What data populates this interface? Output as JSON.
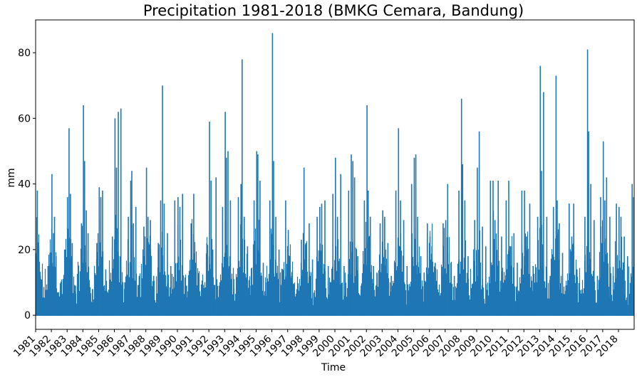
{
  "chart_data": {
    "type": "line",
    "title": "Precipitation 1981-2018 (BMKG Cemara, Bandung)",
    "xlabel": "Time",
    "ylabel": "mm",
    "xlim": [
      "1981-01-01",
      "2018-12-31"
    ],
    "ylim": [
      -4.3,
      90
    ],
    "y_ticks": [
      0,
      20,
      40,
      60,
      80
    ],
    "x_tick_labels": [
      "1981",
      "1982",
      "1983",
      "1984",
      "1985",
      "1986",
      "1987",
      "1988",
      "1989",
      "1990",
      "1991",
      "1992",
      "1993",
      "1994",
      "1995",
      "1996",
      "1997",
      "1998",
      "1999",
      "2000",
      "2001",
      "2002",
      "2003",
      "2004",
      "2005",
      "2006",
      "2007",
      "2008",
      "2009",
      "2010",
      "2011",
      "2012",
      "2013",
      "2014",
      "2015",
      "2016",
      "2017",
      "2018"
    ],
    "grid": false,
    "legend": null,
    "series_color": "#1f77b4",
    "series": [
      {
        "values_note_free": true,
        "x": [
          "1981-01-01",
          "1981-02-10",
          "1981-03-15",
          "1981-04-20",
          "1981-06-01",
          "1981-08-01",
          "1981-10-15",
          "1981-12-01",
          "1982-01-15",
          "1982-02-20",
          "1982-03-15",
          "1982-04-20",
          "1982-06-15",
          "1982-09-01",
          "1982-11-15",
          "1983-01-10",
          "1983-02-15",
          "1983-03-20",
          "1983-05-01",
          "1983-07-15",
          "1983-10-01",
          "1983-12-01",
          "1984-01-15",
          "1984-02-10",
          "1984-03-20",
          "1984-05-01",
          "1984-08-15",
          "1984-11-20",
          "1985-01-15",
          "1985-02-20",
          "1985-04-01",
          "1985-06-15",
          "1985-09-01",
          "1985-11-15",
          "1986-01-15",
          "1986-02-20",
          "1986-04-01",
          "1986-06-01",
          "1986-09-01",
          "1986-11-20",
          "1987-01-15",
          "1987-02-10",
          "1987-03-20",
          "1987-05-15",
          "1987-08-01",
          "1987-11-15",
          "1988-01-15",
          "1988-02-20",
          "1988-04-15",
          "1988-07-01",
          "1988-10-15",
          "1988-12-10",
          "1989-01-20",
          "1989-03-01",
          "1989-05-15",
          "1989-08-01",
          "1989-11-01",
          "1990-01-15",
          "1990-03-01",
          "1990-05-01",
          "1990-08-01",
          "1990-11-15",
          "1991-01-15",
          "1991-03-01",
          "1991-05-15",
          "1991-08-01",
          "1991-11-15",
          "1992-01-15",
          "1992-02-20",
          "1992-04-01",
          "1992-06-15",
          "1992-09-01",
          "1992-11-15",
          "1993-01-15",
          "1993-02-10",
          "1993-03-20",
          "1993-05-15",
          "1993-08-01",
          "1993-11-15",
          "1994-01-15",
          "1994-02-10",
          "1994-04-01",
          "1994-06-15",
          "1994-09-01",
          "1994-11-15",
          "1995-01-15",
          "1995-02-10",
          "1995-04-01",
          "1995-06-15",
          "1995-09-01",
          "1995-11-15",
          "1996-01-15",
          "1996-02-10",
          "1996-04-01",
          "1996-06-15",
          "1996-09-01",
          "1996-11-15",
          "1997-01-15",
          "1997-02-20",
          "1997-04-01",
          "1997-06-15",
          "1997-09-01",
          "1997-11-15",
          "1998-01-15",
          "1998-03-01",
          "1998-05-15",
          "1998-08-01",
          "1998-11-15",
          "1999-01-15",
          "1999-03-01",
          "1999-05-15",
          "1999-08-01",
          "1999-11-15",
          "2000-01-15",
          "2000-03-01",
          "2000-05-15",
          "2000-08-01",
          "2000-11-15",
          "2001-01-15",
          "2001-02-20",
          "2001-04-01",
          "2001-06-15",
          "2001-09-01",
          "2001-11-15",
          "2002-01-15",
          "2002-02-10",
          "2002-04-01",
          "2002-06-15",
          "2002-09-01",
          "2002-11-15",
          "2003-01-15",
          "2003-03-01",
          "2003-05-15",
          "2003-08-01",
          "2003-11-15",
          "2004-01-15",
          "2004-03-01",
          "2004-05-15",
          "2004-08-01",
          "2004-11-15",
          "2005-01-15",
          "2005-02-20",
          "2005-04-01",
          "2005-06-15",
          "2005-09-01",
          "2005-11-15",
          "2006-01-15",
          "2006-03-01",
          "2006-05-15",
          "2006-08-01",
          "2006-11-15",
          "2007-01-15",
          "2007-03-01",
          "2007-05-15",
          "2007-08-01",
          "2007-11-15",
          "2008-01-15",
          "2008-02-10",
          "2008-04-01",
          "2008-06-15",
          "2008-09-01",
          "2008-11-15",
          "2009-01-15",
          "2009-03-01",
          "2009-05-15",
          "2009-08-01",
          "2009-11-15",
          "2010-01-15",
          "2010-03-01",
          "2010-05-15",
          "2010-08-01",
          "2010-11-15",
          "2011-01-15",
          "2011-03-01",
          "2011-05-15",
          "2011-08-01",
          "2011-11-15",
          "2012-01-15",
          "2012-03-01",
          "2012-05-15",
          "2012-08-01",
          "2012-11-15",
          "2013-01-15",
          "2013-02-10",
          "2013-04-01",
          "2013-06-15",
          "2013-09-01",
          "2013-11-15",
          "2014-01-15",
          "2014-02-10",
          "2014-04-01",
          "2014-06-15",
          "2014-09-01",
          "2014-11-15",
          "2015-01-15",
          "2015-03-01",
          "2015-05-15",
          "2015-08-01",
          "2015-11-15",
          "2016-01-15",
          "2016-02-10",
          "2016-04-01",
          "2016-06-15",
          "2016-09-01",
          "2016-11-15",
          "2017-01-15",
          "2017-02-20",
          "2017-04-01",
          "2017-06-15",
          "2017-09-01",
          "2017-11-15",
          "2018-01-15",
          "2018-03-01",
          "2018-05-15",
          "2018-08-01",
          "2018-11-15",
          "2018-12-20"
        ],
        "y": [
          19,
          38,
          21,
          12,
          8,
          3,
          15,
          19,
          43,
          25,
          30,
          18,
          7,
          5,
          20,
          36,
          57,
          37,
          22,
          9,
          4,
          28,
          64,
          47,
          32,
          25,
          8,
          22,
          39,
          36,
          38,
          14,
          6,
          24,
          60,
          45,
          62,
          63,
          10,
          30,
          41,
          44,
          28,
          33,
          12,
          27,
          45,
          30,
          29,
          12,
          22,
          35,
          70,
          34,
          25,
          15,
          35,
          36,
          33,
          37,
          9,
          28,
          37,
          16,
          12,
          6,
          22,
          59,
          41,
          20,
          42,
          9,
          33,
          62,
          48,
          50,
          35,
          11,
          36,
          40,
          78,
          30,
          21,
          9,
          35,
          50,
          49,
          41,
          16,
          10,
          35,
          86,
          47,
          30,
          20,
          14,
          35,
          26,
          18,
          12,
          4,
          6,
          23,
          45,
          22,
          28,
          17,
          30,
          33,
          34,
          35,
          15,
          37,
          48,
          30,
          43,
          15,
          38,
          49,
          47,
          42,
          18,
          9,
          35,
          64,
          38,
          30,
          15,
          13,
          28,
          32,
          30,
          22,
          12,
          38,
          57,
          35,
          29,
          15,
          40,
          48,
          49,
          30,
          18,
          13,
          28,
          24,
          21,
          16,
          7,
          28,
          29,
          40,
          16,
          12,
          38,
          66,
          46,
          35,
          18,
          6,
          29,
          45,
          56,
          27,
          21,
          41,
          41,
          29,
          41,
          24,
          35,
          41,
          21,
          25,
          16,
          38,
          38,
          24,
          34,
          15,
          30,
          76,
          44,
          68,
          30,
          12,
          33,
          73,
          35,
          28,
          19,
          9,
          34,
          24,
          34,
          14,
          6,
          30,
          81,
          56,
          40,
          29,
          12,
          36,
          53,
          35,
          42,
          30,
          12,
          34,
          33,
          30,
          24,
          18,
          40,
          36
        ]
      }
    ]
  }
}
